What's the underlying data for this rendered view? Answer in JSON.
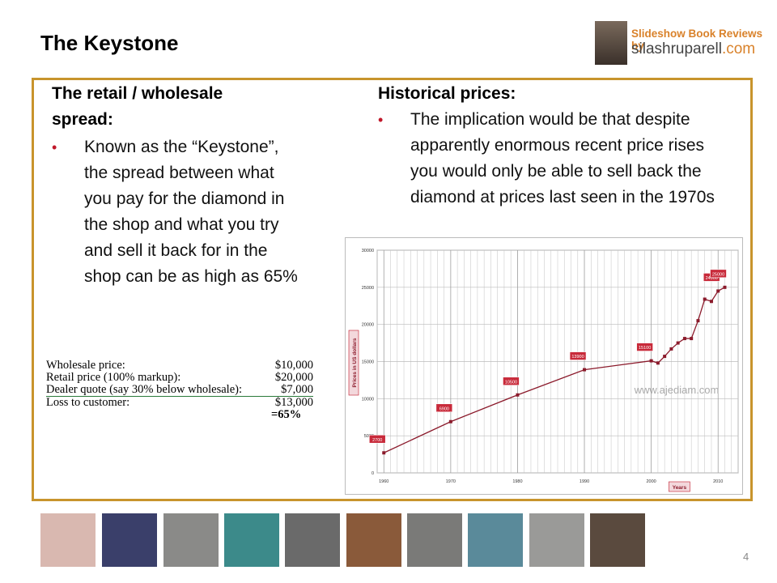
{
  "header": {
    "title": "The Keystone"
  },
  "brand": {
    "line1": "Slideshow Book Reviews by",
    "name": "silashruparell",
    "domain": ".com"
  },
  "left": {
    "heading": "The retail / wholesale spread:",
    "bullet": "Known as the “Keystone”, the spread between what you pay for the diamond in the shop and what you try and sell it back for in the shop can be as high as 65%",
    "table": {
      "rows": [
        [
          "Wholesale price:",
          "$10,000"
        ],
        [
          "Retail price (100% markup):",
          "$20,000"
        ],
        [
          "Dealer quote (say 30% below wholesale):",
          "$7,000"
        ],
        [
          "Loss to customer:",
          "$13,000"
        ]
      ],
      "total": "=65%"
    }
  },
  "right": {
    "heading": "Historical prices:",
    "bullet": "The implication would be that despite apparently enormous recent price rises you would only be able to sell back the diamond at prices last seen in the 1970s"
  },
  "chart_data": {
    "type": "line",
    "x_label": "Years",
    "y_label": "Prices in US dollars",
    "watermark": "www.ajediam.com",
    "color": "#8b1a2b",
    "x": [
      1960,
      1970,
      1980,
      1990,
      2000,
      2001,
      2002,
      2003,
      2004,
      2005,
      2006,
      2007,
      2008,
      2009,
      2010,
      2011
    ],
    "values": [
      2700,
      6900,
      10500,
      13900,
      15100,
      14800,
      15700,
      16700,
      17500,
      18100,
      18100,
      20500,
      23400,
      23100,
      24500,
      25000
    ],
    "value_labels": [
      "2700",
      "6900",
      "10500",
      "13900",
      "15100",
      null,
      null,
      null,
      null,
      null,
      null,
      null,
      null,
      null,
      "24500",
      "25000"
    ],
    "xlim": [
      1959,
      2013
    ],
    "xticks": [
      1960,
      1970,
      1980,
      1990,
      2000,
      2010
    ],
    "ylim": [
      0,
      30000
    ],
    "yticks": [
      0,
      5000,
      10000,
      15000,
      20000,
      25000,
      30000
    ],
    "grid": true
  },
  "footer": {
    "page": "4"
  }
}
